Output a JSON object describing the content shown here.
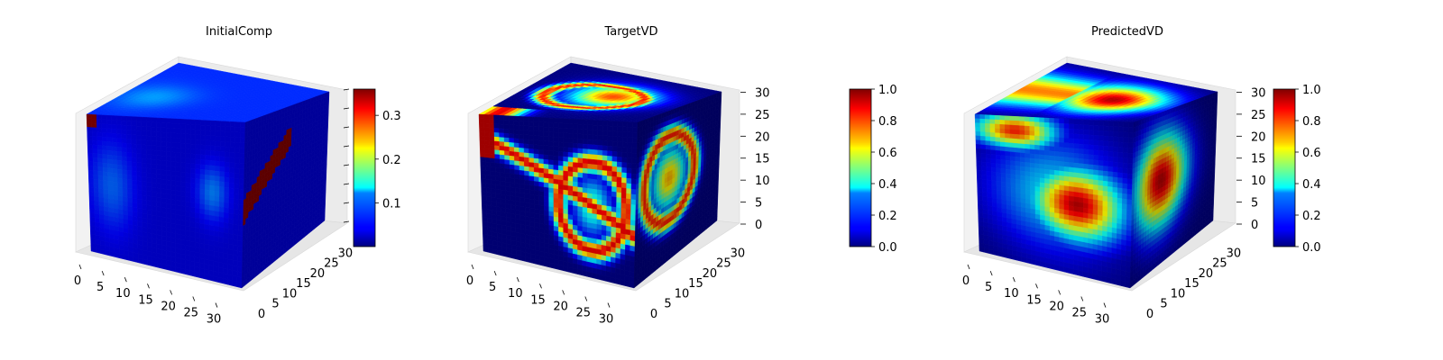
{
  "chart_data": [
    {
      "type": "voxel-3d",
      "title": "InitialComp",
      "x_ticks": [
        "0",
        "5",
        "10",
        "15",
        "20",
        "25",
        "30"
      ],
      "y_ticks": [
        "0",
        "5",
        "10",
        "15",
        "20",
        "25",
        "30"
      ],
      "z_ticks": [],
      "grid_size": 32,
      "colormap": "jet",
      "colorbar": {
        "min": 0.0,
        "max": 0.36,
        "ticks": [
          "0.1",
          "0.2",
          "0.3"
        ]
      },
      "field": {
        "background": 0.0,
        "bands": [],
        "hotspot": true
      }
    },
    {
      "type": "voxel-3d",
      "title": "TargetVD",
      "x_ticks": [
        "0",
        "5",
        "10",
        "15",
        "20",
        "25",
        "30"
      ],
      "y_ticks": [
        "0",
        "5",
        "10",
        "15",
        "20",
        "25",
        "30"
      ],
      "z_ticks": [
        "0",
        "5",
        "10",
        "15",
        "20",
        "25",
        "30"
      ],
      "grid_size": 32,
      "colormap": "jet",
      "colorbar": {
        "min": 0.0,
        "max": 1.0,
        "ticks": [
          "0.0",
          "0.2",
          "0.4",
          "0.6",
          "0.8",
          "1.0"
        ]
      }
    },
    {
      "type": "voxel-3d",
      "title": "PredictedVD",
      "x_ticks": [
        "0",
        "5",
        "10",
        "15",
        "20",
        "25",
        "30"
      ],
      "y_ticks": [
        "0",
        "5",
        "10",
        "15",
        "20",
        "25",
        "30"
      ],
      "z_ticks": [
        "0",
        "5",
        "10",
        "15",
        "20",
        "25",
        "30"
      ],
      "grid_size": 32,
      "colormap": "jet",
      "colorbar": {
        "min": 0.0,
        "max": 1.0,
        "ticks": [
          "0.0",
          "0.2",
          "0.4",
          "0.6",
          "0.8",
          "1.0"
        ]
      }
    }
  ]
}
